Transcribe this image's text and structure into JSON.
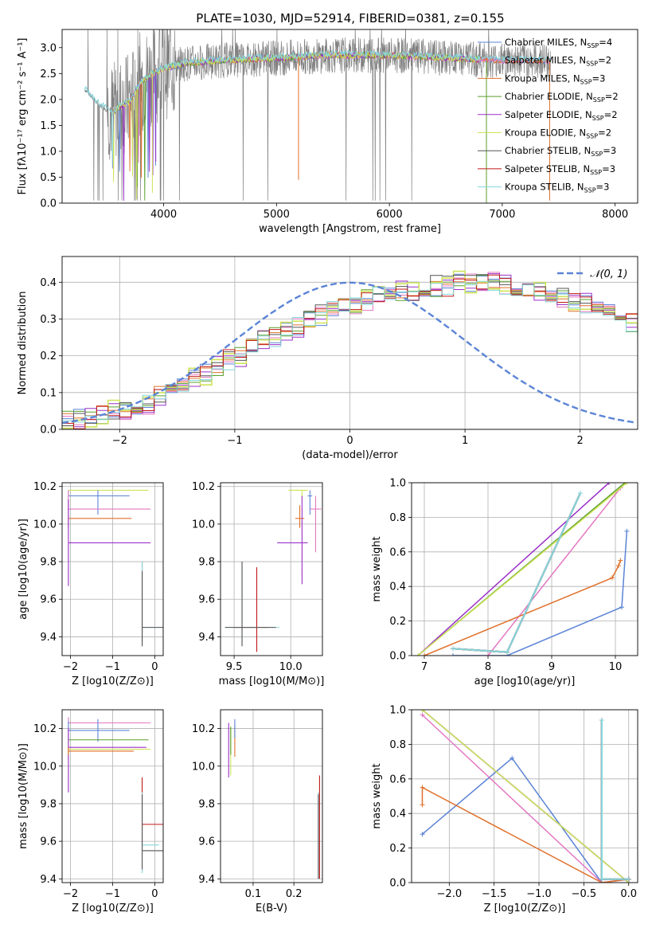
{
  "figure": {
    "title": "PLATE=1030, MJD=52914, FIBERID=0381, z=0.155"
  },
  "colors": {
    "chabrier_miles": "#5b84d6",
    "salpeter_miles": "#e377c2",
    "kroupa_miles": "#e0702a",
    "chabrier_elodie": "#5aa02c",
    "salpeter_elodie": "#9b30c8",
    "kroupa_elodie": "#cfe35a",
    "chabrier_stelib": "#555555",
    "salpeter_stelib": "#c01818",
    "kroupa_stelib": "#86d6dc",
    "data": "#808080",
    "normal": "#5b84d6",
    "grid": "#b0b0b0"
  },
  "legend": {
    "models": [
      {
        "key": "chabrier_miles",
        "label": "Chabrier MILES, N",
        "sub": "SSP",
        "suffix": "=4"
      },
      {
        "key": "salpeter_miles",
        "label": "Salpeter MILES, N",
        "sub": "SSP",
        "suffix": "=2"
      },
      {
        "key": "kroupa_miles",
        "label": "Kroupa MILES, N",
        "sub": "SSP",
        "suffix": "=3"
      },
      {
        "key": "chabrier_elodie",
        "label": "Chabrier ELODIE, N",
        "sub": "SSP",
        "suffix": "=2"
      },
      {
        "key": "salpeter_elodie",
        "label": "Salpeter ELODIE, N",
        "sub": "SSP",
        "suffix": "=2"
      },
      {
        "key": "kroupa_elodie",
        "label": "Kroupa ELODIE, N",
        "sub": "SSP",
        "suffix": "=2"
      },
      {
        "key": "chabrier_stelib",
        "label": "Chabrier STELIB, N",
        "sub": "SSP",
        "suffix": "=3"
      },
      {
        "key": "salpeter_stelib",
        "label": "Salpeter STELIB, N",
        "sub": "SSP",
        "suffix": "=3"
      },
      {
        "key": "kroupa_stelib",
        "label": "Kroupa STELIB, N",
        "sub": "SSP",
        "suffix": "=3"
      }
    ],
    "normal_label": "𝒩(0, 1)"
  },
  "chart_data": [
    {
      "id": "spectrum",
      "type": "line",
      "xlabel": "wavelength [Angstrom, rest frame]",
      "ylabel": "Flux [f_λ 10^-17 erg cm^-2 s^-1 A^-1]",
      "xlim": [
        3100,
        8200
      ],
      "ylim": [
        0,
        3.35
      ],
      "xticks": [
        "4000",
        "5000",
        "6000",
        "7000",
        "8000"
      ],
      "yticks": [
        "0.0",
        "0.5",
        "1.0",
        "1.5",
        "2.0",
        "2.5",
        "3.0"
      ],
      "grid": false,
      "legend_position": "right",
      "model_continuum": {
        "x": [
          3300,
          3400,
          3500,
          3550,
          3600,
          3700,
          3800,
          3900,
          4000,
          4200,
          4500,
          5000,
          5500,
          6000,
          6500,
          7000,
          7400
        ],
        "y": [
          2.2,
          1.95,
          1.8,
          1.75,
          1.85,
          1.95,
          2.35,
          2.5,
          2.6,
          2.7,
          2.75,
          2.8,
          2.85,
          2.85,
          2.8,
          2.75,
          2.75
        ]
      },
      "data_range_x": [
        3300,
        7430
      ]
    },
    {
      "id": "residuals",
      "type": "line",
      "xlabel": "(data-model)/error",
      "ylabel": "Normed distribution",
      "xlim": [
        -2.5,
        2.5
      ],
      "ylim": [
        0,
        0.47
      ],
      "xticks": [
        "−2",
        "−1",
        "0",
        "1",
        "2"
      ],
      "yticks": [
        "0.0",
        "0.1",
        "0.2",
        "0.3",
        "0.4"
      ],
      "grid": true,
      "legend_position": "top-right",
      "bin_width": 0.1,
      "histogram_values": [
        0.02,
        0.03,
        0.03,
        0.04,
        0.05,
        0.05,
        0.06,
        0.07,
        0.09,
        0.11,
        0.13,
        0.14,
        0.15,
        0.17,
        0.19,
        0.2,
        0.22,
        0.24,
        0.25,
        0.27,
        0.28,
        0.3,
        0.31,
        0.32,
        0.33,
        0.34,
        0.35,
        0.36,
        0.37,
        0.38,
        0.38,
        0.39,
        0.39,
        0.39,
        0.4,
        0.4,
        0.4,
        0.4,
        0.39,
        0.39,
        0.38,
        0.38,
        0.37,
        0.36,
        0.35,
        0.34,
        0.33,
        0.32,
        0.3,
        0.29,
        0.27,
        0.26,
        0.24,
        0.22,
        0.21,
        0.19,
        0.17,
        0.16,
        0.14,
        0.13,
        0.11,
        0.1,
        0.08,
        0.07,
        0.06,
        0.05,
        0.04,
        0.04,
        0.03,
        0.03
      ]
    },
    {
      "id": "age_vs_Z",
      "type": "scatter",
      "xlabel": "Z [log10(Z/Z⊙)]",
      "ylabel": "age [log10(age/yr)]",
      "xlim": [
        -2.2,
        0.2
      ],
      "ylim": [
        9.3,
        10.22
      ],
      "xticks": [
        "−2",
        "−1",
        "0"
      ],
      "yticks": [
        "9.4",
        "9.6",
        "9.8",
        "10.0",
        "10.2"
      ],
      "grid": true,
      "points": [
        {
          "key": "kroupa_elodie",
          "x": -2.05,
          "y": 10.18,
          "xerr": [
            0,
            1.9
          ],
          "yerr": [
            0.05,
            0.0
          ]
        },
        {
          "key": "chabrier_miles",
          "x": -2.05,
          "y": 10.15,
          "xerr": [
            0,
            1.45
          ],
          "yerr": [
            0.03,
            0.03
          ]
        },
        {
          "key": "chabrier_miles",
          "x": -1.35,
          "y": 10.15,
          "xerr": [
            0,
            0
          ],
          "yerr": [
            0.1,
            0.03
          ]
        },
        {
          "key": "salpeter_miles",
          "x": -2.05,
          "y": 10.08,
          "xerr": [
            0,
            1.95
          ],
          "yerr": [
            0.1,
            0.1
          ]
        },
        {
          "key": "kroupa_miles",
          "x": -2.05,
          "y": 10.03,
          "xerr": [
            0,
            1.5
          ],
          "yerr": [
            0.05,
            0.1
          ]
        },
        {
          "key": "salpeter_elodie",
          "x": -2.05,
          "y": 9.9,
          "xerr": [
            0,
            1.95
          ],
          "yerr": [
            0.23,
            0.23
          ]
        },
        {
          "key": "salpeter_stelib",
          "x": -0.3,
          "y": 9.75,
          "xerr": [
            0,
            0
          ],
          "yerr": [
            0.4,
            0.05
          ]
        },
        {
          "key": "kroupa_stelib",
          "x": -0.3,
          "y": 9.45,
          "xerr": [
            0,
            0.5
          ],
          "yerr": [
            0.1,
            0.35
          ]
        },
        {
          "key": "chabrier_stelib",
          "x": -0.3,
          "y": 9.45,
          "xerr": [
            0,
            0.5
          ],
          "yerr": [
            0.1,
            0.3
          ]
        }
      ]
    },
    {
      "id": "age_vs_mass",
      "type": "scatter",
      "xlabel": "mass [log10(M/M⊙)]",
      "ylabel": "",
      "xlim": [
        9.38,
        10.28
      ],
      "ylim": [
        9.3,
        10.22
      ],
      "xticks": [
        "9.5",
        "10.0"
      ],
      "yticks": [
        "9.4",
        "9.6",
        "9.8",
        "10.0",
        "10.2"
      ],
      "grid": true,
      "points": [
        {
          "key": "kroupa_elodie",
          "x": 10.1,
          "y": 10.18,
          "xerr": [
            0.12,
            0.05
          ],
          "yerr": [
            0.05,
            0.0
          ]
        },
        {
          "key": "chabrier_miles",
          "x": 10.17,
          "y": 10.15,
          "xerr": [
            0.02,
            0.02
          ],
          "yerr": [
            0.1,
            0.03
          ]
        },
        {
          "key": "salpeter_miles",
          "x": 10.22,
          "y": 10.08,
          "xerr": [
            0.05,
            0.05
          ],
          "yerr": [
            0.23,
            0.07
          ]
        },
        {
          "key": "kroupa_miles",
          "x": 10.08,
          "y": 10.03,
          "xerr": [
            0.04,
            0.04
          ],
          "yerr": [
            0.05,
            0.07
          ]
        },
        {
          "key": "salpeter_elodie",
          "x": 10.1,
          "y": 9.9,
          "xerr": [
            0.22,
            0.05
          ],
          "yerr": [
            0.22,
            0.25
          ]
        },
        {
          "key": "salpeter_stelib",
          "x": 9.7,
          "y": 9.45,
          "xerr": [
            0.2,
            0.1
          ],
          "yerr": [
            0.13,
            0.32
          ]
        },
        {
          "key": "kroupa_stelib",
          "x": 9.57,
          "y": 9.45,
          "xerr": [
            0.15,
            0.33
          ],
          "yerr": [
            0.1,
            0.35
          ]
        },
        {
          "key": "chabrier_stelib",
          "x": 9.57,
          "y": 9.45,
          "xerr": [
            0.15,
            0.3
          ],
          "yerr": [
            0.1,
            0.35
          ]
        }
      ]
    },
    {
      "id": "weight_vs_age",
      "type": "line",
      "xlabel": "age [log10(age/yr)]",
      "ylabel": "mass weight",
      "xlim": [
        6.8,
        10.35
      ],
      "ylim": [
        0,
        1
      ],
      "xticks": [
        "7",
        "8",
        "9",
        "10"
      ],
      "yticks": [
        "0.0",
        "0.2",
        "0.4",
        "0.6",
        "0.8",
        "1.0"
      ],
      "grid": true,
      "series": [
        {
          "key": "chabrier_miles",
          "x": [
            7.45,
            8.3,
            10.1,
            10.18
          ],
          "y": [
            0.0,
            0.0,
            0.28,
            0.72
          ]
        },
        {
          "key": "salpeter_miles",
          "x": [
            8.0,
            10.08
          ],
          "y": [
            0.0,
            0.97
          ]
        },
        {
          "key": "kroupa_miles",
          "x": [
            7.0,
            9.95,
            10.05,
            10.08
          ],
          "y": [
            0.0,
            0.45,
            0.52,
            0.55
          ]
        },
        {
          "key": "chabrier_elodie",
          "x": [
            6.9,
            10.15
          ],
          "y": [
            0.0,
            1.0
          ]
        },
        {
          "key": "salpeter_elodie",
          "x": [
            6.9,
            9.9
          ],
          "y": [
            0.0,
            1.0
          ]
        },
        {
          "key": "kroupa_elodie",
          "x": [
            6.9,
            10.18
          ],
          "y": [
            0.0,
            1.0
          ]
        },
        {
          "key": "chabrier_stelib",
          "x": [
            7.45,
            8.3,
            9.45
          ],
          "y": [
            0.04,
            0.02,
            0.94
          ]
        },
        {
          "key": "salpeter_stelib",
          "x": [
            7.45,
            8.3,
            9.45
          ],
          "y": [
            0.04,
            0.02,
            0.94
          ]
        },
        {
          "key": "kroupa_stelib",
          "x": [
            7.45,
            8.3,
            9.45
          ],
          "y": [
            0.04,
            0.02,
            0.94
          ]
        }
      ]
    },
    {
      "id": "mass_vs_Z",
      "type": "scatter",
      "xlabel": "Z [log10(Z/Z⊙)]",
      "ylabel": "mass [log10(M/M⊙)]",
      "xlim": [
        -2.2,
        0.2
      ],
      "ylim": [
        9.38,
        10.3
      ],
      "xticks": [
        "−2",
        "−1",
        "0"
      ],
      "yticks": [
        "9.4",
        "9.6",
        "9.8",
        "10.0",
        "10.2"
      ],
      "grid": true,
      "points": [
        {
          "key": "salpeter_miles",
          "x": -2.05,
          "y": 10.23,
          "xerr": [
            0,
            1.95
          ],
          "yerr": [
            0.05,
            0.03
          ]
        },
        {
          "key": "chabrier_miles",
          "x": -2.05,
          "y": 10.19,
          "xerr": [
            0,
            1.45
          ],
          "yerr": [
            0.05,
            0.05
          ]
        },
        {
          "key": "chabrier_miles",
          "x": -1.35,
          "y": 10.19,
          "xerr": [
            0,
            0
          ],
          "yerr": [
            0.06,
            0.06
          ]
        },
        {
          "key": "chabrier_elodie",
          "x": -2.05,
          "y": 10.14,
          "xerr": [
            0,
            1.9
          ],
          "yerr": [
            0.1,
            0.03
          ]
        },
        {
          "key": "kroupa_elodie",
          "x": -2.05,
          "y": 10.09,
          "xerr": [
            0,
            1.95
          ],
          "yerr": [
            0.15,
            0.05
          ]
        },
        {
          "key": "salpeter_elodie",
          "x": -2.05,
          "y": 10.1,
          "xerr": [
            0,
            1.85
          ],
          "yerr": [
            0.24,
            0.1
          ]
        },
        {
          "key": "kroupa_miles",
          "x": -2.05,
          "y": 10.08,
          "xerr": [
            0,
            1.55
          ],
          "yerr": [
            0.02,
            0.02
          ]
        },
        {
          "key": "salpeter_stelib",
          "x": -0.3,
          "y": 9.69,
          "xerr": [
            0,
            0.5
          ],
          "yerr": [
            0.1,
            0.25
          ]
        },
        {
          "key": "kroupa_stelib",
          "x": -0.3,
          "y": 9.58,
          "xerr": [
            0,
            0.4
          ],
          "yerr": [
            0.15,
            0.28
          ]
        },
        {
          "key": "chabrier_stelib",
          "x": -0.3,
          "y": 9.55,
          "xerr": [
            0,
            0.5
          ],
          "yerr": [
            0.1,
            0.3
          ]
        }
      ]
    },
    {
      "id": "mass_vs_ebv",
      "type": "scatter",
      "xlabel": "E(B-V)",
      "ylabel": "",
      "xlim": [
        0.02,
        0.27
      ],
      "ylim": [
        9.38,
        10.3
      ],
      "xticks": [
        "0.1",
        "0.2"
      ],
      "yticks": [
        "9.4",
        "9.6",
        "9.8",
        "10.0",
        "10.2"
      ],
      "grid": true,
      "points": [
        {
          "key": "salpeter_elodie",
          "x": 0.04,
          "y": 10.2,
          "xerr": [
            0,
            0
          ],
          "yerr": [
            0.26,
            0.03
          ]
        },
        {
          "key": "kroupa_elodie",
          "x": 0.045,
          "y": 10.15,
          "xerr": [
            0,
            0
          ],
          "yerr": [
            0.2,
            0.05
          ]
        },
        {
          "key": "chabrier_elodie",
          "x": 0.045,
          "y": 10.18,
          "xerr": [
            0,
            0
          ],
          "yerr": [
            0.12,
            0.03
          ]
        },
        {
          "key": "kroupa_miles",
          "x": 0.055,
          "y": 10.1,
          "xerr": [
            0,
            0
          ],
          "yerr": [
            0.05,
            0.12
          ]
        },
        {
          "key": "chabrier_miles",
          "x": 0.055,
          "y": 10.2,
          "xerr": [
            0,
            0
          ],
          "yerr": [
            0.05,
            0.05
          ]
        },
        {
          "key": "salpeter_stelib",
          "x": 0.263,
          "y": 9.85,
          "xerr": [
            0,
            0
          ],
          "yerr": [
            0.45,
            0.1
          ]
        },
        {
          "key": "kroupa_stelib",
          "x": 0.26,
          "y": 9.6,
          "xerr": [
            0,
            0
          ],
          "yerr": [
            0.2,
            0.26
          ]
        },
        {
          "key": "chabrier_stelib",
          "x": 0.26,
          "y": 9.6,
          "xerr": [
            0,
            0
          ],
          "yerr": [
            0.2,
            0.25
          ]
        }
      ]
    },
    {
      "id": "weight_vs_Z",
      "type": "line",
      "xlabel": "Z [log10(Z/Z⊙)]",
      "ylabel": "mass weight",
      "xlim": [
        -2.42,
        0.1
      ],
      "ylim": [
        0,
        1
      ],
      "xticks": [
        "−2.0",
        "−1.5",
        "−1.0",
        "−0.5",
        "0.0"
      ],
      "yticks": [
        "0.0",
        "0.2",
        "0.4",
        "0.6",
        "0.8",
        "1.0"
      ],
      "grid": true,
      "series": [
        {
          "key": "chabrier_miles",
          "x": [
            -2.3,
            -1.3,
            -0.3,
            0.0
          ],
          "y": [
            0.28,
            0.72,
            0.0,
            0.02
          ]
        },
        {
          "key": "salpeter_miles",
          "x": [
            -2.3,
            -0.3,
            0.0
          ],
          "y": [
            0.97,
            0.0,
            0.02
          ]
        },
        {
          "key": "kroupa_miles",
          "x": [
            -2.3,
            -2.3,
            -0.3,
            0.0
          ],
          "y": [
            0.45,
            0.55,
            0.0,
            0.02
          ]
        },
        {
          "key": "chabrier_elodie",
          "x": [
            -2.3,
            0.0
          ],
          "y": [
            1.0,
            0.0
          ]
        },
        {
          "key": "salpeter_elodie",
          "x": [
            -2.3,
            0.0
          ],
          "y": [
            1.0,
            0.0
          ]
        },
        {
          "key": "kroupa_elodie",
          "x": [
            -2.3,
            0.0
          ],
          "y": [
            1.0,
            0.0
          ]
        },
        {
          "key": "chabrier_stelib",
          "x": [
            -0.3,
            -0.3,
            0.0
          ],
          "y": [
            0.94,
            0.02,
            0.02
          ]
        },
        {
          "key": "salpeter_stelib",
          "x": [
            -0.3,
            -0.3,
            0.0
          ],
          "y": [
            0.94,
            0.02,
            0.02
          ]
        },
        {
          "key": "kroupa_stelib",
          "x": [
            -0.3,
            -0.3,
            0.0
          ],
          "y": [
            0.94,
            0.02,
            0.02
          ]
        }
      ]
    }
  ]
}
